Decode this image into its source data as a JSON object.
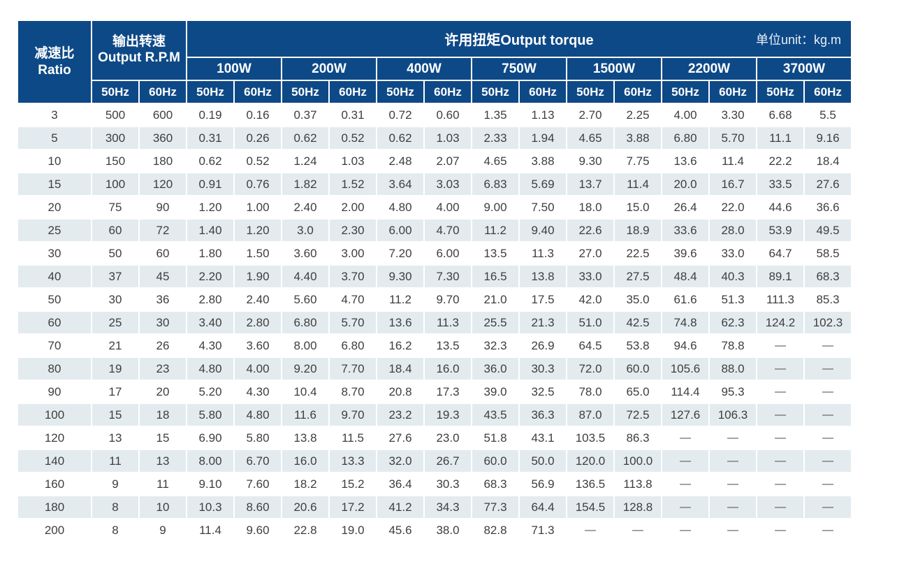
{
  "table": {
    "corner": {
      "line1": "减速比",
      "line2": "Ratio"
    },
    "rpm_header": {
      "line1": "输出转速",
      "line2": "Output R.P.M"
    },
    "torque_title": "许用扭矩Output torque",
    "unit_label": "单位unit：kg.m",
    "power_labels": [
      "100W",
      "200W",
      "400W",
      "750W",
      "1500W",
      "2200W",
      "3700W"
    ],
    "freq_labels": [
      "50Hz",
      "60Hz"
    ],
    "colors": {
      "header_bg": "#0e4987",
      "header_text": "#ffffff",
      "row_alt_bg": "#e3ebef",
      "row_bg": "#ffffff",
      "body_text": "#3e3e3e"
    },
    "rows": [
      {
        "ratio": "3",
        "rpm": [
          "500",
          "600"
        ],
        "torque": [
          "0.19",
          "0.16",
          "0.37",
          "0.31",
          "0.72",
          "0.60",
          "1.35",
          "1.13",
          "2.70",
          "2.25",
          "4.00",
          "3.30",
          "6.68",
          "5.5"
        ]
      },
      {
        "ratio": "5",
        "rpm": [
          "300",
          "360"
        ],
        "torque": [
          "0.31",
          "0.26",
          "0.62",
          "0.52",
          "0.62",
          "1.03",
          "2.33",
          "1.94",
          "4.65",
          "3.88",
          "6.80",
          "5.70",
          "11.1",
          "9.16"
        ]
      },
      {
        "ratio": "10",
        "rpm": [
          "150",
          "180"
        ],
        "torque": [
          "0.62",
          "0.52",
          "1.24",
          "1.03",
          "2.48",
          "2.07",
          "4.65",
          "3.88",
          "9.30",
          "7.75",
          "13.6",
          "11.4",
          "22.2",
          "18.4"
        ]
      },
      {
        "ratio": "15",
        "rpm": [
          "100",
          "120"
        ],
        "torque": [
          "0.91",
          "0.76",
          "1.82",
          "1.52",
          "3.64",
          "3.03",
          "6.83",
          "5.69",
          "13.7",
          "11.4",
          "20.0",
          "16.7",
          "33.5",
          "27.6"
        ]
      },
      {
        "ratio": "20",
        "rpm": [
          "75",
          "90"
        ],
        "torque": [
          "1.20",
          "1.00",
          "2.40",
          "2.00",
          "4.80",
          "4.00",
          "9.00",
          "7.50",
          "18.0",
          "15.0",
          "26.4",
          "22.0",
          "44.6",
          "36.6"
        ]
      },
      {
        "ratio": "25",
        "rpm": [
          "60",
          "72"
        ],
        "torque": [
          "1.40",
          "1.20",
          "3.0",
          "2.30",
          "6.00",
          "4.70",
          "11.2",
          "9.40",
          "22.6",
          "18.9",
          "33.6",
          "28.0",
          "53.9",
          "49.5"
        ]
      },
      {
        "ratio": "30",
        "rpm": [
          "50",
          "60"
        ],
        "torque": [
          "1.80",
          "1.50",
          "3.60",
          "3.00",
          "7.20",
          "6.00",
          "13.5",
          "11.3",
          "27.0",
          "22.5",
          "39.6",
          "33.0",
          "64.7",
          "58.5"
        ]
      },
      {
        "ratio": "40",
        "rpm": [
          "37",
          "45"
        ],
        "torque": [
          "2.20",
          "1.90",
          "4.40",
          "3.70",
          "9.30",
          "7.30",
          "16.5",
          "13.8",
          "33.0",
          "27.5",
          "48.4",
          "40.3",
          "89.1",
          "68.3"
        ]
      },
      {
        "ratio": "50",
        "rpm": [
          "30",
          "36"
        ],
        "torque": [
          "2.80",
          "2.40",
          "5.60",
          "4.70",
          "11.2",
          "9.70",
          "21.0",
          "17.5",
          "42.0",
          "35.0",
          "61.6",
          "51.3",
          "111.3",
          "85.3"
        ]
      },
      {
        "ratio": "60",
        "rpm": [
          "25",
          "30"
        ],
        "torque": [
          "3.40",
          "2.80",
          "6.80",
          "5.70",
          "13.6",
          "11.3",
          "25.5",
          "21.3",
          "51.0",
          "42.5",
          "74.8",
          "62.3",
          "124.2",
          "102.3"
        ]
      },
      {
        "ratio": "70",
        "rpm": [
          "21",
          "26"
        ],
        "torque": [
          "4.30",
          "3.60",
          "8.00",
          "6.80",
          "16.2",
          "13.5",
          "32.3",
          "26.9",
          "64.5",
          "53.8",
          "94.6",
          "78.8",
          "—",
          "—"
        ]
      },
      {
        "ratio": "80",
        "rpm": [
          "19",
          "23"
        ],
        "torque": [
          "4.80",
          "4.00",
          "9.20",
          "7.70",
          "18.4",
          "16.0",
          "36.0",
          "30.3",
          "72.0",
          "60.0",
          "105.6",
          "88.0",
          "—",
          "—"
        ]
      },
      {
        "ratio": "90",
        "rpm": [
          "17",
          "20"
        ],
        "torque": [
          "5.20",
          "4.30",
          "10.4",
          "8.70",
          "20.8",
          "17.3",
          "39.0",
          "32.5",
          "78.0",
          "65.0",
          "114.4",
          "95.3",
          "—",
          "—"
        ]
      },
      {
        "ratio": "100",
        "rpm": [
          "15",
          "18"
        ],
        "torque": [
          "5.80",
          "4.80",
          "11.6",
          "9.70",
          "23.2",
          "19.3",
          "43.5",
          "36.3",
          "87.0",
          "72.5",
          "127.6",
          "106.3",
          "—",
          "—"
        ]
      },
      {
        "ratio": "120",
        "rpm": [
          "13",
          "15"
        ],
        "torque": [
          "6.90",
          "5.80",
          "13.8",
          "11.5",
          "27.6",
          "23.0",
          "51.8",
          "43.1",
          "103.5",
          "86.3",
          "—",
          "—",
          "—",
          "—"
        ]
      },
      {
        "ratio": "140",
        "rpm": [
          "11",
          "13"
        ],
        "torque": [
          "8.00",
          "6.70",
          "16.0",
          "13.3",
          "32.0",
          "26.7",
          "60.0",
          "50.0",
          "120.0",
          "100.0",
          "—",
          "—",
          "—",
          "—"
        ]
      },
      {
        "ratio": "160",
        "rpm": [
          "9",
          "11"
        ],
        "torque": [
          "9.10",
          "7.60",
          "18.2",
          "15.2",
          "36.4",
          "30.3",
          "68.3",
          "56.9",
          "136.5",
          "113.8",
          "—",
          "—",
          "—",
          "—"
        ]
      },
      {
        "ratio": "180",
        "rpm": [
          "8",
          "10"
        ],
        "torque": [
          "10.3",
          "8.60",
          "20.6",
          "17.2",
          "41.2",
          "34.3",
          "77.3",
          "64.4",
          "154.5",
          "128.8",
          "—",
          "—",
          "—",
          "—"
        ]
      },
      {
        "ratio": "200",
        "rpm": [
          "8",
          "9"
        ],
        "torque": [
          "11.4",
          "9.60",
          "22.8",
          "19.0",
          "45.6",
          "38.0",
          "82.8",
          "71.3",
          "—",
          "—",
          "—",
          "—",
          "—",
          "—"
        ]
      }
    ]
  }
}
